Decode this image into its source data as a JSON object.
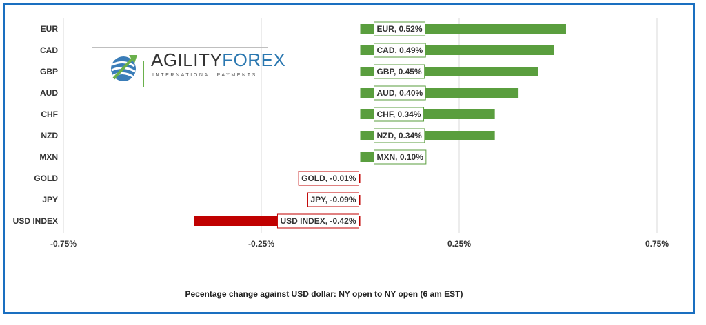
{
  "chart_data": {
    "type": "bar",
    "orientation": "horizontal",
    "categories": [
      "EUR",
      "CAD",
      "GBP",
      "AUD",
      "CHF",
      "NZD",
      "MXN",
      "GOLD",
      "JPY",
      "USD INDEX"
    ],
    "values": [
      0.52,
      0.49,
      0.45,
      0.4,
      0.34,
      0.34,
      0.1,
      -0.01,
      -0.09,
      -0.42
    ],
    "data_labels": [
      "EUR, 0.52%",
      "CAD, 0.49%",
      "GBP, 0.45%",
      "AUD, 0.40%",
      "CHF, 0.34%",
      "NZD, 0.34%",
      "MXN, 0.10%",
      "GOLD, -0.01%",
      "JPY, -0.09%",
      "USD INDEX, -0.42%"
    ],
    "xlim": [
      -0.75,
      0.75
    ],
    "x_ticks": [
      -0.75,
      -0.25,
      0.25,
      0.75
    ],
    "x_tick_labels": [
      "-0.75%",
      "-0.25%",
      "0.25%",
      "0.75%"
    ],
    "xlabel": "Pecentage change against USD dollar:  NY open to NY open  (6 am EST)",
    "grid": "vertical",
    "colors": {
      "positive": "#5a9e3e",
      "negative": "#c00000",
      "label_border_positive": "#5a9e3e",
      "label_border_negative": "#c00000",
      "frame": "#1a6fc0"
    }
  },
  "logo": {
    "name_part1": "AGILITY",
    "name_part2": "FOREX",
    "tagline": "INTERNATIONAL PAYMENTS",
    "icon": "globe-arrow-icon"
  }
}
